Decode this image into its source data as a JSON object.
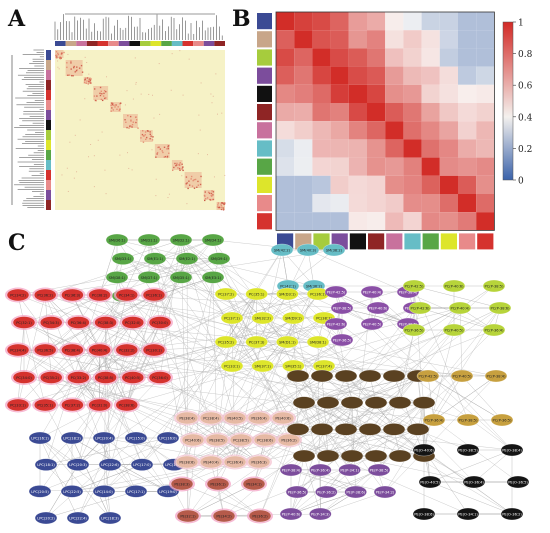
{
  "panels": {
    "a": "A",
    "b": "B",
    "c": "C"
  },
  "colors": {
    "navy": "#3b4a94",
    "tan": "#c8a689",
    "lime": "#a6cc3d",
    "purple": "#7c4d9c",
    "black": "#111111",
    "darkred": "#8f2525",
    "pink": "#c8719d",
    "cyan": "#66bdc6",
    "green": "#58a646",
    "yellow": "#dde52b",
    "salmon": "#e88a8a",
    "red": "#d5322e",
    "brown": "#5a4121",
    "gold": "#c7a03f",
    "matrix_bg": "#f6f2c6"
  },
  "colorbar": {
    "ticks": [
      "1",
      "0.8",
      "0.6",
      "0.4",
      "0.2",
      "0"
    ]
  },
  "network": {
    "clusters": [
      {
        "color": "green",
        "labels": [
          "SM(D6:1)",
          "SM(D1:1)",
          "SM(D2:1)",
          "SM(D4:1)",
          "SM(D3:1)",
          "SM(E1:1)",
          "SM(E2:1)",
          "SM(D9:1)",
          "SM(D8:1)",
          "SM(D7:1)",
          "SM(D5:1)",
          "SM(E3:1)",
          "SM(E4:1)",
          "SM(E5:1)"
        ]
      },
      {
        "color": "cyan",
        "labels": [
          "SM(42:2)",
          "SM(40:3)",
          "SM(38:2)",
          "PC(42:1)",
          "SM(36:2)"
        ]
      },
      {
        "color": "yellow",
        "labels": [
          "PC(37:2)",
          "PC(35:1)",
          "SM(D3:1)",
          "PC(36:1)",
          "PC(37:1)",
          "SM(32:2)",
          "SM(D9:1)",
          "PC(38:1)",
          "PC(35:2)",
          "PC(37:3)",
          "SM(D1:1)",
          "SM(D8:1)",
          "PC(33:1)",
          "SM(37:1)",
          "SM(35:1)",
          "PC(37:4)"
        ]
      },
      {
        "color": "purple",
        "labels": [
          "PE(P-42:5)",
          "PE(P-40:4)",
          "PE(P-38:4)",
          "PE(P-38:5)",
          "PE(P-40:6)",
          "PE(P-36:4)",
          "PE(P-42:6)",
          "PE(P-40:5)",
          "PE(P-38:6)",
          "PE(P-36:5)"
        ]
      },
      {
        "color": "lime",
        "labels": [
          "PC(P-42:5)",
          "PC(P-40:6)",
          "PC(P-38:5)",
          "PC(P-42:6)",
          "PC(P-40:4)",
          "PC(P-38:6)",
          "PC(P-36:5)",
          "PC(P-40:5)",
          "PC(P-36:4)"
        ]
      },
      {
        "color": "red",
        "labels": [
          "PC(34:2)",
          "PC(36:2)",
          "PC(36:3)",
          "PC(38:2)",
          "PC(34:1)",
          "PC(36:1)",
          "PC(32:1)",
          "PC(34:3)",
          "PC(36:4)",
          "PC(38:3)",
          "PC(32:0)",
          "PC(30:0)",
          "PC(34:4)",
          "PC(36:5)",
          "PC(38:4)",
          "PC(40:4)",
          "PC(32:2)",
          "PC(30:1)",
          "PC(34:0)",
          "PC(35:2)",
          "PC(33:2)",
          "PC(38:5)",
          "PC(40:5)",
          "PC(36:0)",
          "PC(33:1)",
          "PC(35:1)",
          "PC(37:2)",
          "PC(31:0)",
          "PC(38:6)"
        ]
      },
      {
        "color": "navy",
        "labels": [
          "LPC(16:1)",
          "LPC(18:2)",
          "LPC(20:4)",
          "LPC(15:0)",
          "LPC(16:0)",
          "LPC(18:1)",
          "LPC(20:3)",
          "LPC(22:6)",
          "LPC(17:0)",
          "LPC(18:0)",
          "LPC(20:5)",
          "LPC(22:5)",
          "LPC(14:0)",
          "LPC(17:1)",
          "LPC(19:0)",
          "LPC(20:2)",
          "LPC(22:4)",
          "LPC(18:3)"
        ]
      },
      {
        "color": "tan",
        "labels": [
          "PE(38:4)",
          "PC(38:4)",
          "PE(40:5)",
          "PE(36:4)",
          "PE(40:6)",
          "PC(40:6)",
          "PE(38:5)",
          "PC(38:5)",
          "PC(38:6)",
          "PE(36:2)",
          "PE(38:6)",
          "PE(40:4)",
          "PC(36:4)",
          "PE(36:3)"
        ]
      },
      {
        "color": "darkred",
        "labels": [
          "PE(38:3)",
          "PE(36:1)",
          "PE(34:1)",
          "PE(32:1)",
          "PE(34:2)",
          "PE(36:2)"
        ]
      },
      {
        "color": "brown",
        "labels": [
          "",
          "",
          "",
          "",
          "",
          "",
          "",
          "",
          "",
          "",
          "",
          "",
          "",
          "",
          "",
          "",
          "",
          "",
          "",
          "",
          "",
          "",
          "",
          ""
        ]
      },
      {
        "color": "gold",
        "labels": [
          "PC(P-42:5)",
          "PC(P-40:5)",
          "PC(P-38:4)",
          "PC(P-36:4)",
          "PC(P-38:5)",
          "PC(P-36:5)"
        ]
      },
      {
        "color": "purple2",
        "labels": [
          "PE(P-38:4)",
          "PE(P-36:4)",
          "PE(P-34:1)",
          "PE(P-38:5)",
          "PE(P-36:5)",
          "PE(P-36:2)",
          "PE(P-38:6)",
          "PE(P-34:2)",
          "PE(P-40:6)",
          "PE(P-34:3)"
        ]
      },
      {
        "color": "black",
        "labels": [
          "PE(O-40:6)",
          "PE(O-38:5)",
          "PE(O-38:4)",
          "PE(O-40:5)",
          "PE(O-36:4)",
          "PE(O-36:5)",
          "PE(O-38:6)",
          "PE(O-34:1)",
          "PE(O-36:2)"
        ]
      }
    ]
  }
}
